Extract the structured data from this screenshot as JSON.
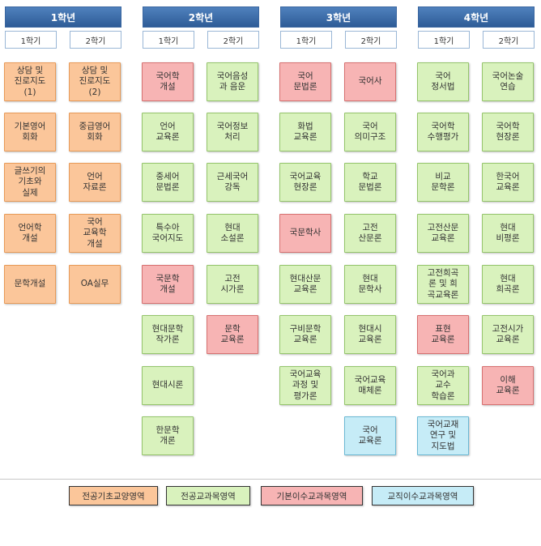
{
  "years": [
    "1학년",
    "2학년",
    "3학년",
    "4학년"
  ],
  "semesters": {
    "y1s1": "1학기",
    "y1s2": "2학기",
    "y2s1": "1학기",
    "y2s2": "2학기",
    "y3s1": "1학기",
    "y3s2": "2학기",
    "y4s1": "1학기",
    "y4s2": "2학기"
  },
  "courses": {
    "y1s1": [
      "상담 및\n진로지도\n(1)",
      "기본영어\n회화",
      "글쓰기의\n기초와\n실제",
      "언어학\n개설",
      "문학개설"
    ],
    "y1s2": [
      "상담 및\n진로지도\n(2)",
      "중급영어\n회화",
      "언어\n자료론",
      "국어\n교육학\n개설",
      "OA실무"
    ],
    "y2s1": [
      "국어학\n개설",
      "언어\n교육론",
      "중세어\n문법론",
      "특수아\n국어지도",
      "국문학\n개설",
      "현대문학\n작가론",
      "현대시론",
      "한문학\n개론"
    ],
    "y2s2": [
      "국어음성\n과 음운",
      "국어정보\n처리",
      "근세국어\n강독",
      "현대\n소설론",
      "고전\n시가론",
      "문학\n교육론"
    ],
    "y3s1": [
      "국어\n문법론",
      "화법\n교육론",
      "국어교육\n현장론",
      "국문학사",
      "현대산문\n교육론",
      "구비문학\n교육론",
      "국어교육\n과정 및\n평가론"
    ],
    "y3s2": [
      "국어사",
      "국어\n의미구조",
      "학교\n문법론",
      "고전\n산문론",
      "현대\n문학사",
      "현대시\n교육론",
      "국어교육\n매체론",
      "국어\n교육론"
    ],
    "y4s1": [
      "국어\n정서법",
      "국어학\n수행평가",
      "비교\n문학론",
      "고전산문\n교육론",
      "고전희곡\n론 및 희\n곡교육론",
      "표현\n교육론",
      "국어과\n교수\n학습론",
      "국어교재\n연구 및\n지도법"
    ],
    "y4s2": [
      "국어논술\n연습",
      "국어학\n현장론",
      "한국어\n교육론",
      "현대\n비평론",
      "현대\n희곡론",
      "고전시가\n교육론",
      "이해\n교육론"
    ]
  },
  "legend": [
    "전공기초교양영역",
    "전공교과목영역",
    "기본이수교과목영역",
    "교직이수교과목영역"
  ],
  "colors": {
    "전공기초교양영역": "#fbc69a",
    "전공교과목영역": "#d9f2bd",
    "기본이수교과목영역": "#f7b4b4",
    "교직이수교과목영역": "#c6ecf7",
    "header": "#4f81bd"
  }
}
